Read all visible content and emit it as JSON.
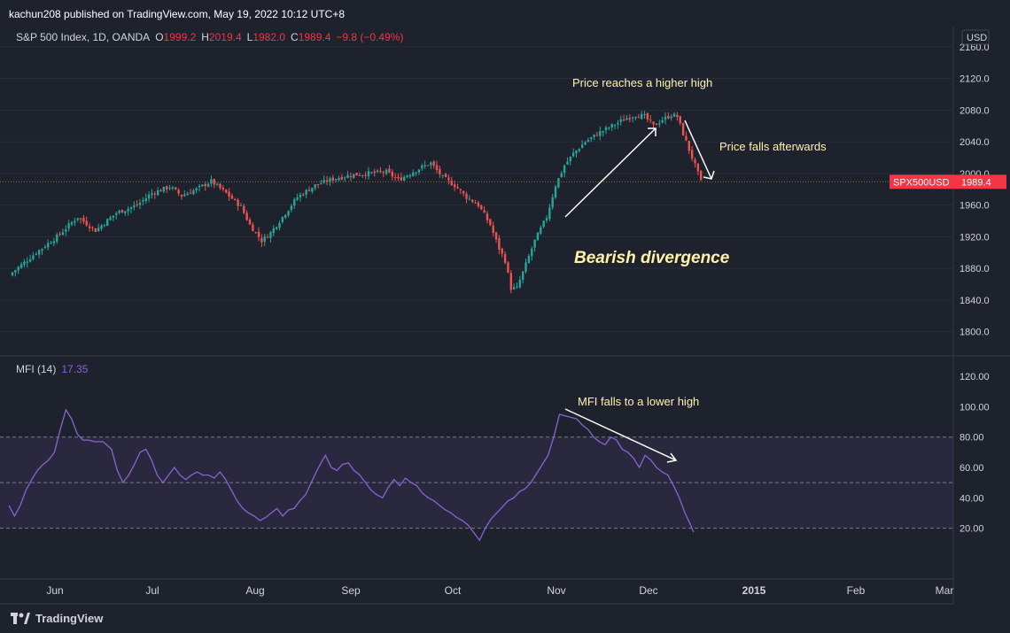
{
  "header": {
    "published": "kachun208 published on TradingView.com, May 19, 2022 10:12 UTC+8"
  },
  "footer": {
    "brand": "TradingView"
  },
  "chart_data": [
    {
      "type": "candlestick",
      "title": "S&P 500 Index, 1D, OANDA",
      "ohlc_label": {
        "o_label": "O",
        "o": "1999.2",
        "h_label": "H",
        "h": "2019.4",
        "l_label": "L",
        "l": "1982.0",
        "c_label": "C",
        "c": "1989.4",
        "change": "−9.8 (−0.49%)"
      },
      "currency": "USD",
      "y_ticks": [
        1800,
        1840,
        1880,
        1920,
        1960,
        2000,
        2040,
        2080,
        2120,
        2160
      ],
      "ylim": [
        1775,
        2180
      ],
      "x_tick_labels": [
        "Jun",
        "Jul",
        "Aug",
        "Sep",
        "Oct",
        "Nov",
        "Dec",
        "2015",
        "Feb",
        "Mar"
      ],
      "last_price_tag": {
        "symbol": "SPX500USD",
        "value": "1989.4"
      },
      "close_path": [
        [
          0,
          1875
        ],
        [
          8,
          1900
        ],
        [
          15,
          1920
        ],
        [
          22,
          1945
        ],
        [
          28,
          1928
        ],
        [
          35,
          1950
        ],
        [
          42,
          1960
        ],
        [
          47,
          1975
        ],
        [
          53,
          1983
        ],
        [
          57,
          1972
        ],
        [
          62,
          1980
        ],
        [
          67,
          1990
        ],
        [
          72,
          1975
        ],
        [
          77,
          1958
        ],
        [
          80,
          1935
        ],
        [
          84,
          1915
        ],
        [
          87,
          1925
        ],
        [
          91,
          1945
        ],
        [
          96,
          1970
        ],
        [
          102,
          1985
        ],
        [
          108,
          1993
        ],
        [
          114,
          1998
        ],
        [
          120,
          2000
        ],
        [
          126,
          2002
        ],
        [
          130,
          1992
        ],
        [
          134,
          2000
        ],
        [
          138,
          2008
        ],
        [
          141,
          2013
        ],
        [
          145,
          1995
        ],
        [
          149,
          1985
        ],
        [
          153,
          1970
        ],
        [
          157,
          1960
        ],
        [
          161,
          1935
        ],
        [
          164,
          1905
        ],
        [
          166,
          1890
        ],
        [
          168,
          1855
        ],
        [
          170,
          1855
        ],
        [
          173,
          1885
        ],
        [
          176,
          1915
        ],
        [
          180,
          1945
        ],
        [
          183,
          1985
        ],
        [
          186,
          2010
        ],
        [
          189,
          2025
        ],
        [
          193,
          2040
        ],
        [
          198,
          2052
        ],
        [
          203,
          2062
        ],
        [
          207,
          2070
        ],
        [
          210,
          2074
        ],
        [
          213,
          2072
        ],
        [
          216,
          2060
        ],
        [
          219,
          2068
        ],
        [
          222,
          2074
        ],
        [
          224,
          2072
        ],
        [
          226,
          2050
        ],
        [
          228,
          2030
        ],
        [
          230,
          2010
        ],
        [
          232,
          1989.4
        ]
      ],
      "annotations": [
        "Price reaches a higher high",
        "Price falls afterwards",
        "Bearish divergence"
      ]
    },
    {
      "type": "line",
      "title": "MFI (14)",
      "last_value": "17.35",
      "y_ticks": [
        "20.00",
        "40.00",
        "60.00",
        "80.00",
        "100.00",
        "120.00"
      ],
      "ylim": [
        -10,
        130
      ],
      "band": {
        "upper": 80,
        "middle": 50,
        "lower": 20
      },
      "series_color": "#8a63d2",
      "path": [
        [
          0,
          35
        ],
        [
          2,
          28
        ],
        [
          4,
          35
        ],
        [
          6,
          45
        ],
        [
          8,
          52
        ],
        [
          10,
          58
        ],
        [
          12,
          62
        ],
        [
          14,
          65
        ],
        [
          16,
          70
        ],
        [
          18,
          85
        ],
        [
          20,
          98
        ],
        [
          22,
          92
        ],
        [
          24,
          82
        ],
        [
          26,
          78
        ],
        [
          28,
          78
        ],
        [
          30,
          77
        ],
        [
          33,
          77
        ],
        [
          36,
          72
        ],
        [
          38,
          58
        ],
        [
          40,
          50
        ],
        [
          42,
          55
        ],
        [
          44,
          62
        ],
        [
          46,
          70
        ],
        [
          48,
          72
        ],
        [
          50,
          65
        ],
        [
          52,
          55
        ],
        [
          54,
          50
        ],
        [
          56,
          55
        ],
        [
          58,
          60
        ],
        [
          60,
          55
        ],
        [
          62,
          52
        ],
        [
          64,
          55
        ],
        [
          66,
          57
        ],
        [
          68,
          55
        ],
        [
          70,
          55
        ],
        [
          72,
          53
        ],
        [
          74,
          57
        ],
        [
          76,
          52
        ],
        [
          78,
          45
        ],
        [
          80,
          38
        ],
        [
          82,
          33
        ],
        [
          84,
          30
        ],
        [
          86,
          28
        ],
        [
          88,
          25
        ],
        [
          90,
          27
        ],
        [
          92,
          30
        ],
        [
          94,
          33
        ],
        [
          96,
          28
        ],
        [
          98,
          32
        ],
        [
          100,
          33
        ],
        [
          102,
          38
        ],
        [
          104,
          42
        ],
        [
          106,
          50
        ],
        [
          108,
          58
        ],
        [
          110,
          65
        ],
        [
          111,
          68
        ],
        [
          113,
          60
        ],
        [
          115,
          58
        ],
        [
          117,
          62
        ],
        [
          119,
          63
        ],
        [
          121,
          58
        ],
        [
          123,
          55
        ],
        [
          125,
          50
        ],
        [
          127,
          45
        ],
        [
          129,
          42
        ],
        [
          131,
          40
        ],
        [
          133,
          47
        ],
        [
          135,
          52
        ],
        [
          137,
          48
        ],
        [
          139,
          53
        ],
        [
          141,
          50
        ],
        [
          143,
          48
        ],
        [
          145,
          43
        ],
        [
          147,
          40
        ],
        [
          149,
          38
        ],
        [
          151,
          35
        ],
        [
          153,
          32
        ],
        [
          155,
          30
        ],
        [
          157,
          27
        ],
        [
          159,
          25
        ],
        [
          161,
          22
        ],
        [
          163,
          17
        ],
        [
          165,
          12
        ],
        [
          167,
          20
        ],
        [
          169,
          26
        ],
        [
          171,
          30
        ],
        [
          173,
          34
        ],
        [
          175,
          38
        ],
        [
          177,
          40
        ],
        [
          179,
          44
        ],
        [
          181,
          46
        ],
        [
          183,
          50
        ],
        [
          185,
          56
        ],
        [
          187,
          62
        ],
        [
          189,
          68
        ],
        [
          191,
          80
        ],
        [
          193,
          95
        ],
        [
          195,
          94
        ],
        [
          197,
          93
        ],
        [
          199,
          92
        ],
        [
          201,
          88
        ],
        [
          203,
          85
        ],
        [
          205,
          80
        ],
        [
          207,
          77
        ],
        [
          209,
          75
        ],
        [
          211,
          80
        ],
        [
          213,
          78
        ],
        [
          215,
          72
        ],
        [
          217,
          70
        ],
        [
          219,
          66
        ],
        [
          221,
          60
        ],
        [
          223,
          68
        ],
        [
          225,
          65
        ],
        [
          227,
          60
        ],
        [
          229,
          57
        ],
        [
          231,
          55
        ],
        [
          233,
          48
        ],
        [
          235,
          40
        ],
        [
          237,
          30
        ],
        [
          239,
          22
        ],
        [
          240,
          17.35
        ]
      ],
      "annotations": [
        "MFI falls to a lower high"
      ]
    }
  ]
}
